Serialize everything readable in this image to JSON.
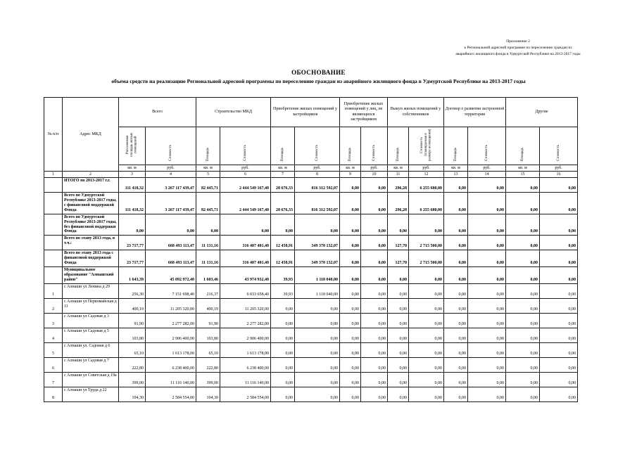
{
  "page": {
    "annotation": [
      "Приложение 2",
      "к Региональной адресной программе по переселению граждан из",
      "аварийного жилищного фонда в Удмуртской Республике на 2013-2017 годы"
    ],
    "title": "ОБОСНОВАНИЕ",
    "subtitle": "объема средств на реализацию Региональной адресной программы по переселению граждан из аварийного жилищного фонда в Удмуртской Республике на 2013-2017 годы"
  },
  "table": {
    "corner_headers": {
      "num": "№ п/п",
      "address": "Адрес МКД"
    },
    "groups": [
      {
        "label": "Всего",
        "sub": [
          "Расселяемая площадь жилых помещений",
          "Стоимость"
        ],
        "units": [
          "кв. м",
          "руб."
        ]
      },
      {
        "label": "Строительство МКД",
        "sub": [
          "Площадь",
          "Стоимость"
        ],
        "units": [
          "кв. м",
          "руб."
        ]
      },
      {
        "label": "Приобретение жилых помещений у застройщиков",
        "sub": [
          "Площадь",
          "Стоимость"
        ],
        "units": [
          "кв. м",
          "руб."
        ]
      },
      {
        "label": "Приобретение жилых помещений у лиц, не являющихся застройщиком",
        "sub": [
          "Площадь",
          "Стоимость"
        ],
        "units": [
          "кв. м",
          "руб."
        ]
      },
      {
        "label": "Выкуп жилых помещений у собственников",
        "sub": [
          "Площадь",
          "Стоимость (планируемая в размере возмещения)"
        ],
        "units": [
          "кв. м",
          "руб."
        ]
      },
      {
        "label": "Договор о развитии застроенной территории",
        "sub": [
          "Площадь",
          "Стоимость"
        ],
        "units": [
          "кв. м",
          "руб."
        ]
      },
      {
        "label": "Другие",
        "sub": [
          "Площадь",
          "Стоимость"
        ],
        "units": [
          "кв. м",
          "руб."
        ]
      }
    ],
    "column_numbers": [
      "1",
      "2",
      "3",
      "4",
      "5",
      "6",
      "7",
      "8",
      "9",
      "10",
      "11",
      "12",
      "13",
      "14",
      "15",
      "16"
    ],
    "rows": [
      {
        "num": "",
        "address": "ИТОГО по 2013-2017 г.г.",
        "bold": true,
        "values": [
          "111 418,32",
          "3 267 117 439,47",
          "82 445,71",
          "2 444 549 167,40",
          "28 676,33",
          "816 312 592,07",
          "0,00",
          "0,00",
          "296,28",
          "6 255 680,00",
          "0,00",
          "0,00",
          "0,00",
          "0,00"
        ]
      },
      {
        "num": "",
        "address": "Всего по Удмуртской Республике 2013-2017 годы, с финансовой поддержкой Фонда",
        "bold": true,
        "values": [
          "111 418,32",
          "3 267 117 439,47",
          "82 445,71",
          "2 444 549 167,40",
          "28 676,33",
          "816 312 592,07",
          "0,00",
          "0,00",
          "296,28",
          "6 255 680,00",
          "0,00",
          "0,00",
          "0,00",
          "0,00"
        ]
      },
      {
        "num": "",
        "address": "Всего по Удмуртской Республике 2013-2017 годы, без финансовой поддержки Фонда",
        "bold": true,
        "values": [
          "0,00",
          "0,00",
          "0,00",
          "0,00",
          "0,00",
          "0,00",
          "0,00",
          "0,00",
          "0,00",
          "0,00",
          "0,00",
          "0,00",
          "0,00",
          "0,00"
        ]
      },
      {
        "num": "",
        "address": "Всего по этапу 2013 года, в т.ч.:",
        "bold": true,
        "values": [
          "23 717,77",
          "668 493 113,47",
          "11 131,16",
          "316 407 481,40",
          "12 458,91",
          "349 370 132,07",
          "0,00",
          "0,00",
          "127,70",
          "2 715 500,00",
          "0,00",
          "0,00",
          "0,00",
          "0,00"
        ]
      },
      {
        "num": "",
        "address": "Всего по этапу 2013 года с финансовой поддержкой Фонда",
        "bold": true,
        "values": [
          "23 717,77",
          "668 493 113,47",
          "11 131,16",
          "316 407 481,40",
          "12 458,91",
          "349 370 132,07",
          "0,00",
          "0,00",
          "127,70",
          "2 715 500,00",
          "0,00",
          "0,00",
          "0,00",
          "0,00"
        ]
      },
      {
        "num": "",
        "address": "Муниципальное образование \"Алнашский район\"",
        "bold": true,
        "values": [
          "1 643,39",
          "45 092 972,40",
          "1 603,46",
          "43 974 932,40",
          "39,93",
          "1 118 040,00",
          "0,00",
          "0,00",
          "0,00",
          "0,00",
          "0,00",
          "0,00",
          "0,00",
          "0,00"
        ]
      },
      {
        "num": "1",
        "address": "с Алнаши ул Ленина д 29",
        "bold": false,
        "values": [
          "256,30",
          "7 151 698,40",
          "216,37",
          "6 033 658,40",
          "39,93",
          "1 118 040,00",
          "0,00",
          "0,00",
          "0,00",
          "0,00",
          "0,00",
          "0,00",
          "0,00",
          "0,00"
        ]
      },
      {
        "num": "2",
        "address": "с Алнаши ул Первомайская д 11",
        "bold": false,
        "values": [
          "400,19",
          "11 205 320,00",
          "400,19",
          "11 205 320,00",
          "0,00",
          "0,00",
          "0,00",
          "0,00",
          "0,00",
          "0,00",
          "0,00",
          "0,00",
          "0,00",
          "0,00"
        ]
      },
      {
        "num": "3",
        "address": "с Алнаши ул Садовая д 3",
        "bold": false,
        "values": [
          "91,90",
          "2 277 282,00",
          "91,90",
          "2 277 282,00",
          "0,00",
          "0,00",
          "0,00",
          "0,00",
          "0,00",
          "0,00",
          "0,00",
          "0,00",
          "0,00",
          "0,00"
        ]
      },
      {
        "num": "4",
        "address": "с Алнаши ул Садовая д 5",
        "bold": false,
        "values": [
          "103,80",
          "2 906 400,00",
          "103,80",
          "2 906 400,00",
          "0,00",
          "0,00",
          "0,00",
          "0,00",
          "0,00",
          "0,00",
          "0,00",
          "0,00",
          "0,00",
          "0,00"
        ]
      },
      {
        "num": "5",
        "address": "с Алнаши ул. Садовая д 6",
        "bold": false,
        "values": [
          "65,10",
          "1 613 178,00",
          "65,10",
          "1 613 178,00",
          "0,00",
          "0,00",
          "0,00",
          "0,00",
          "0,00",
          "0,00",
          "0,00",
          "0,00",
          "0,00",
          "0,00"
        ]
      },
      {
        "num": "6",
        "address": "с Алнаши ул Садовая д 7",
        "bold": false,
        "values": [
          "222,80",
          "6 238 400,00",
          "222,80",
          "6 238 400,00",
          "0,00",
          "0,00",
          "0,00",
          "0,00",
          "0,00",
          "0,00",
          "0,00",
          "0,00",
          "0,00",
          "0,00"
        ]
      },
      {
        "num": "7",
        "address": "с Алнаши ул Советская д 19а",
        "bold": false,
        "values": [
          "399,00",
          "11 116 140,00",
          "399,00",
          "11 116 140,00",
          "0,00",
          "0,00",
          "0,00",
          "0,00",
          "0,00",
          "0,00",
          "0,00",
          "0,00",
          "0,00",
          "0,00"
        ]
      },
      {
        "num": "8",
        "address": "с Алнаши ул Труда д 22",
        "bold": false,
        "values": [
          "104,30",
          "2 584 554,00",
          "104,30",
          "2 584 554,00",
          "0,00",
          "0,00",
          "0,00",
          "0,00",
          "0,00",
          "0,00",
          "0,00",
          "0,00",
          "0,00",
          "0,00"
        ]
      }
    ]
  }
}
